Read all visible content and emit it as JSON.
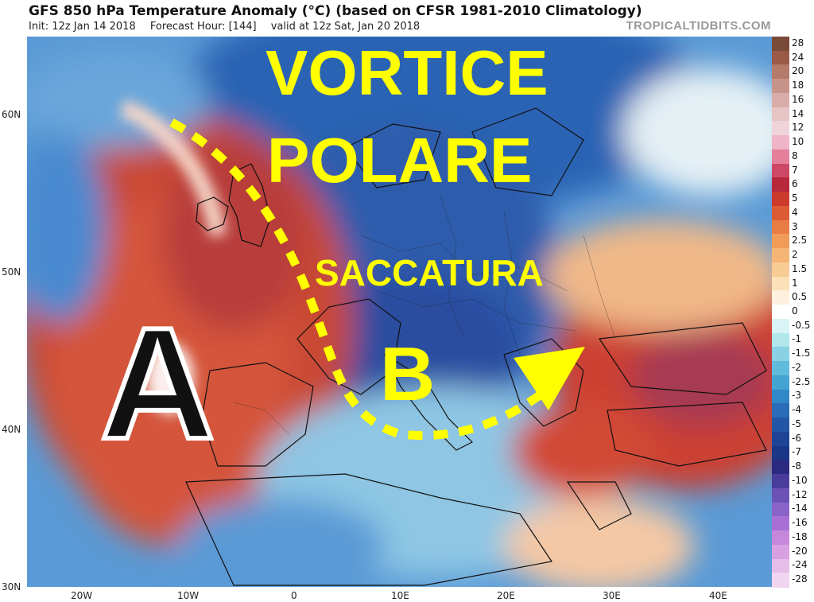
{
  "header": {
    "title": "GFS 850 hPa Temperature Anomaly (°C) (based on CFSR 1981-2010 Climatology)",
    "init": "Init: 12z Jan 14 2018",
    "forecast_hour": "Forecast Hour: [144]",
    "valid": "valid at 12z Sat, Jan 20 2018",
    "site": "TROPICALTIDBITS.COM"
  },
  "annotations": {
    "vortice": "VORTICE",
    "polare": "POLARE",
    "saccatura": "SACCATURA",
    "high": "A",
    "low": "B"
  },
  "axes": {
    "lat_labels": [
      "60N",
      "50N",
      "40N",
      "30N"
    ],
    "lon_labels": [
      "20W",
      "10W",
      "0",
      "10E",
      "20E",
      "30E",
      "40E"
    ]
  },
  "colorbar": {
    "labels": [
      "28",
      "24",
      "20",
      "18",
      "16",
      "14",
      "12",
      "10",
      "8",
      "7",
      "6",
      "5",
      "4",
      "3",
      "2.5",
      "2",
      "1.5",
      "1",
      "0.5",
      "0",
      "-0.5",
      "-1",
      "-1.5",
      "-2",
      "-2.5",
      "-3",
      "-4",
      "-5",
      "-6",
      "-7",
      "-8",
      "-10",
      "-12",
      "-14",
      "-16",
      "-18",
      "-20",
      "-24",
      "-28"
    ],
    "colors": [
      "#7a4a38",
      "#9a5a48",
      "#b47a6a",
      "#c8948a",
      "#d8aca8",
      "#e6c4c6",
      "#eed4da",
      "#f0b4c8",
      "#e4809a",
      "#cc4866",
      "#b8283c",
      "#cc3a2c",
      "#dc5a34",
      "#e87c44",
      "#f09c58",
      "#f4b474",
      "#f8cc94",
      "#fbe0b8",
      "#fdf0dc",
      "#ffffff",
      "#d8f4f4",
      "#b0e6ec",
      "#88d2e4",
      "#60bcdc",
      "#44a4d2",
      "#3088c6",
      "#2a6cb8",
      "#2456a6",
      "#1f4496",
      "#1a3686",
      "#2a2a80",
      "#4a3c9a",
      "#6c52b4",
      "#8a62c8",
      "#a870d4",
      "#c688dc",
      "#d8a0e0",
      "#e6bce8",
      "#f0d4f0"
    ]
  }
}
